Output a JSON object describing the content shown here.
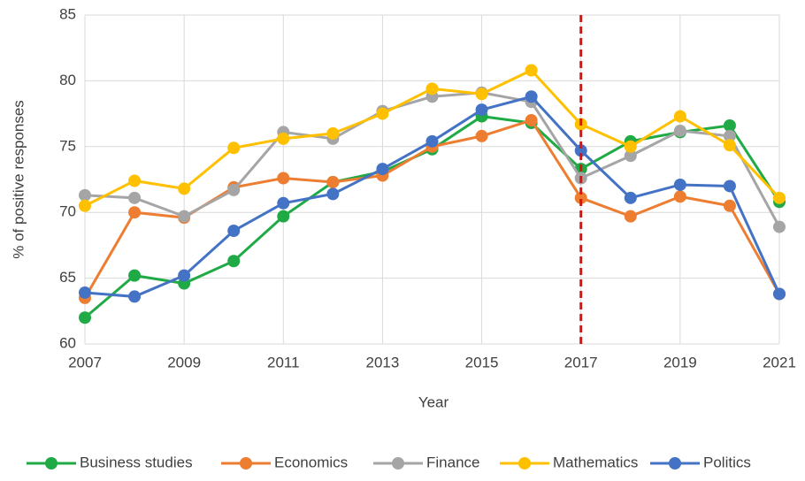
{
  "chart_data": {
    "type": "line",
    "x_label": "Year",
    "y_label": "% of positive responses",
    "x": [
      2007,
      2008,
      2009,
      2010,
      2011,
      2012,
      2013,
      2014,
      2015,
      2016,
      2017,
      2018,
      2019,
      2020,
      2021
    ],
    "series": [
      {
        "name": "Business studies",
        "color": "#1faa45",
        "values": [
          62.0,
          65.2,
          64.6,
          66.3,
          69.7,
          72.3,
          73.1,
          74.8,
          77.3,
          76.8,
          73.3,
          75.4,
          76.1,
          76.6,
          70.8
        ]
      },
      {
        "name": "Economics",
        "color": "#ed7d31",
        "values": [
          63.5,
          70.0,
          69.6,
          71.9,
          72.6,
          72.3,
          72.8,
          75.0,
          75.8,
          77.0,
          71.1,
          69.7,
          71.2,
          70.5,
          63.8
        ]
      },
      {
        "name": "Finance",
        "color": "#a5a5a5",
        "values": [
          71.3,
          71.1,
          69.7,
          71.7,
          76.1,
          75.6,
          77.7,
          78.8,
          79.1,
          78.4,
          72.6,
          74.3,
          76.2,
          75.8,
          68.9
        ]
      },
      {
        "name": "Mathematics",
        "color": "#ffc000",
        "values": [
          70.5,
          72.4,
          71.8,
          74.9,
          75.6,
          76.0,
          77.5,
          79.4,
          79.0,
          80.8,
          76.7,
          75.0,
          77.3,
          75.1,
          71.1
        ]
      },
      {
        "name": "Politics",
        "color": "#4472c4",
        "values": [
          63.9,
          63.6,
          65.2,
          68.6,
          70.7,
          71.4,
          73.3,
          75.4,
          77.8,
          78.8,
          74.7,
          71.1,
          72.1,
          72.0,
          63.8
        ]
      }
    ],
    "xlim": [
      2007,
      2021
    ],
    "xticks": [
      2007,
      2009,
      2011,
      2013,
      2015,
      2017,
      2019,
      2021
    ],
    "ylim": [
      60,
      85
    ],
    "yticks": [
      60,
      65,
      70,
      75,
      80,
      85
    ],
    "grid": true,
    "legend": "bottom",
    "reference_line": {
      "x": 2017,
      "color": "#e01010"
    }
  }
}
